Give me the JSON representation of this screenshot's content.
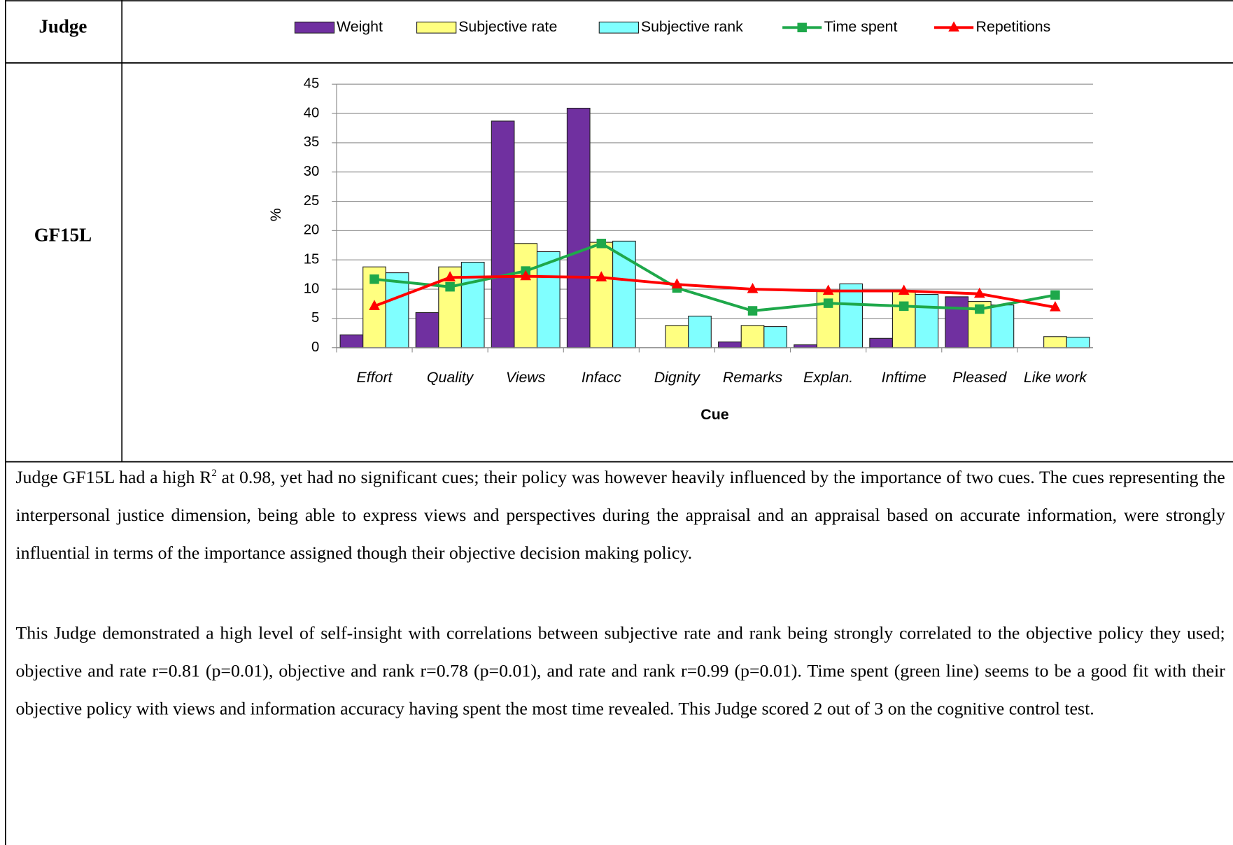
{
  "table": {
    "header": "Judge",
    "row_label": "GF15L"
  },
  "chart_data": {
    "type": "bar",
    "ylabel": "%",
    "xlabel": "Cue",
    "categories": [
      "Effort",
      "Quality",
      "Views",
      "Infacc",
      "Dignity",
      "Remarks",
      "Explan.",
      "Inftime",
      "Pleased",
      "Like work"
    ],
    "series": [
      {
        "name": "Weight",
        "type": "bar",
        "color": "#7030a0",
        "values": [
          2.2,
          6,
          38.7,
          40.9,
          0,
          1,
          0.5,
          1.6,
          8.7,
          0
        ]
      },
      {
        "name": "Subjective rate",
        "type": "bar",
        "color": "#ffff80",
        "values": [
          13.8,
          13.8,
          17.8,
          18,
          3.8,
          3.8,
          9.7,
          9.7,
          7.9,
          1.9
        ]
      },
      {
        "name": "Subjective rank",
        "type": "bar",
        "color": "#80ffff",
        "values": [
          12.8,
          14.6,
          16.4,
          18.2,
          5.4,
          3.6,
          10.9,
          9.1,
          7.3,
          1.8
        ]
      },
      {
        "name": "Time spent",
        "type": "line",
        "color": "#1ea84a",
        "marker": "square",
        "values": [
          11.7,
          10.4,
          13.1,
          17.8,
          10.2,
          6.3,
          7.6,
          7.1,
          6.6,
          9.0
        ]
      },
      {
        "name": "Repetitions",
        "type": "line",
        "color": "#ff0000",
        "marker": "triangle",
        "values": [
          7.1,
          12.0,
          12.2,
          12.0,
          10.8,
          10.0,
          9.7,
          9.7,
          9.2,
          6.9
        ]
      }
    ],
    "ylim": [
      0,
      45
    ],
    "yticks": [
      0,
      5,
      10,
      15,
      20,
      25,
      30,
      35,
      40,
      45
    ],
    "grid": true,
    "legend": "top"
  },
  "text": {
    "p1_pre": "Judge GF15L had a high R",
    "p1_sup": "2",
    "p1_post": " at 0.98, yet had no significant cues; their policy was however heavily influenced by the importance of two cues. The cues representing the interpersonal justice dimension, being able to express views and perspectives during the appraisal and an appraisal based on accurate information, were strongly influential in terms of the importance assigned though their objective decision making policy.",
    "p2": "This Judge demonstrated a high level of self-insight with correlations between subjective rate and rank being strongly correlated to the objective policy they used; objective and rate r=0.81 (p=0.01), objective and rank r=0.78 (p=0.01), and rate and rank r=0.99 (p=0.01). Time spent (green line) seems to be a good fit with their objective policy with views and information accuracy having spent the most time revealed. This Judge scored 2 out of 3 on the cognitive control test."
  }
}
